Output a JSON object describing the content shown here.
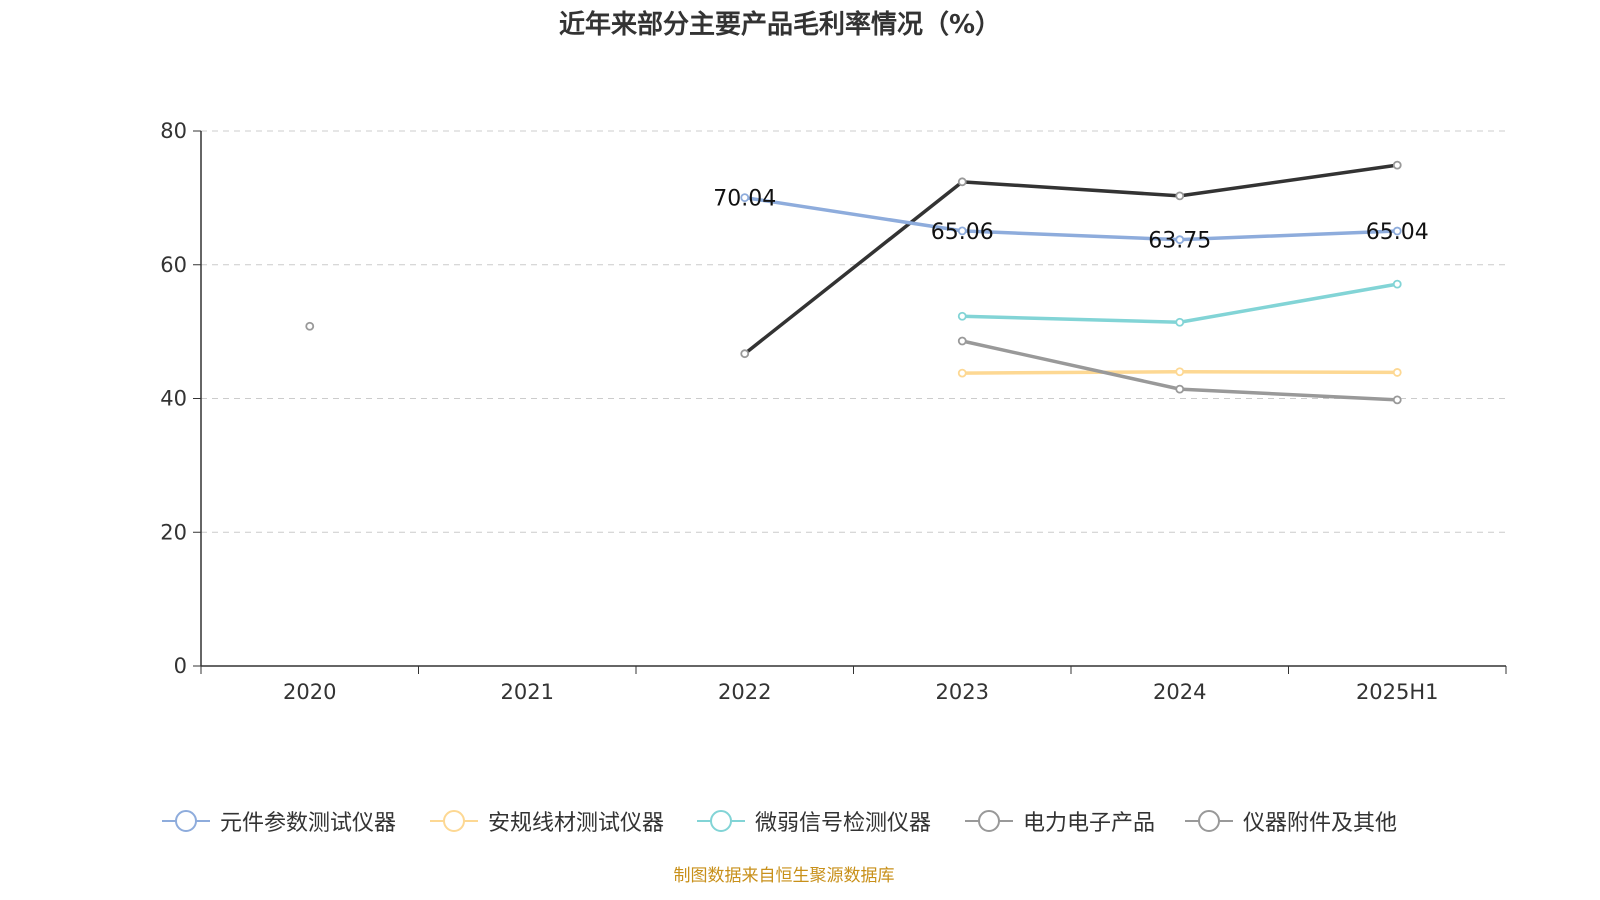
{
  "chart_data": {
    "type": "line",
    "title": "近年来部分主要产品毛利率情况（%）",
    "categories": [
      "2020",
      "2021",
      "2022",
      "2023",
      "2024",
      "2025H1"
    ],
    "ylim": [
      0,
      80
    ],
    "yticks": [
      0,
      20,
      40,
      60,
      80
    ],
    "grid": true,
    "legend_position": "bottom",
    "series": [
      {
        "name": "元件参数测试仪器",
        "color": "#8eacdc",
        "values": [
          null,
          null,
          70.04,
          65.06,
          63.75,
          65.04
        ],
        "labels": [
          "",
          "",
          "70.04",
          "65.06",
          "63.75",
          "65.04"
        ]
      },
      {
        "name": "安规线材测试仪器",
        "color": "#fdd893",
        "values": [
          null,
          null,
          null,
          43.8,
          44.0,
          43.9
        ]
      },
      {
        "name": "微弱信号检测仪器",
        "color": "#82d4d6",
        "values": [
          null,
          null,
          null,
          52.3,
          51.4,
          57.1
        ]
      },
      {
        "name": "电力电子产品",
        "color": "#999999",
        "values": [
          null,
          null,
          null,
          48.6,
          41.4,
          39.8
        ]
      },
      {
        "name": "仪器附件及其他",
        "color": "#999999",
        "line_color": "#333333",
        "values": [
          50.8,
          null,
          46.7,
          72.4,
          70.3,
          74.9
        ]
      }
    ]
  },
  "source": "制图数据来自恒生聚源数据库"
}
